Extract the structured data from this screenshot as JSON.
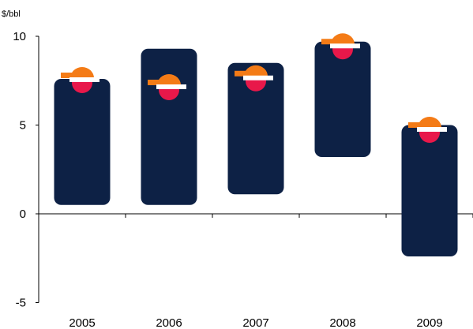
{
  "chart_data": {
    "type": "bar",
    "title": "",
    "unit_label": "$/bbl",
    "xlabel": "",
    "ylabel": "",
    "categories": [
      "2005",
      "2006",
      "2007",
      "2008",
      "2009"
    ],
    "ranges": [
      {
        "low": 0.5,
        "high": 7.6
      },
      {
        "low": 0.5,
        "high": 9.3
      },
      {
        "low": 1.1,
        "high": 8.5
      },
      {
        "low": 3.2,
        "high": 9.7
      },
      {
        "low": -2.4,
        "high": 5.0
      }
    ],
    "markers": [
      7.6,
      7.2,
      7.7,
      9.5,
      4.8
    ],
    "yticks": [
      10,
      5,
      0,
      -5
    ],
    "ylim": [
      -5,
      10
    ],
    "grid": false,
    "colors": {
      "bar": "#0d2145",
      "marker_dome": "#f47b16",
      "marker_ball": "#e8184a",
      "marker_band": "#ffffff",
      "axis": "#000000"
    }
  }
}
